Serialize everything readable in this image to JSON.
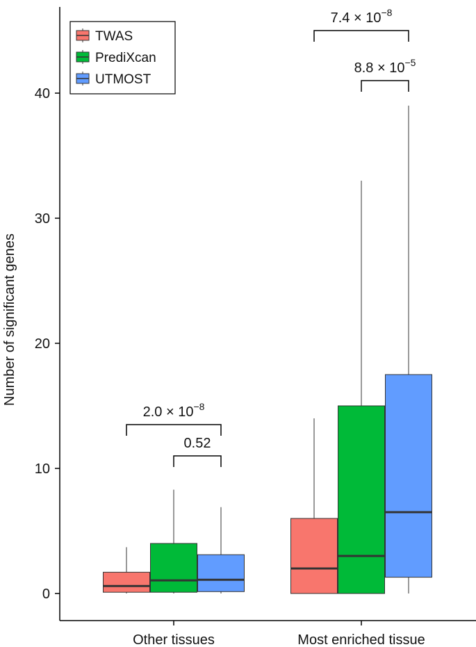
{
  "chart_data": {
    "type": "boxplot",
    "title": "",
    "xlabel": "",
    "ylabel": "Number of significant genes",
    "ylim": [
      -1.5,
      46
    ],
    "yticks": [
      0,
      10,
      20,
      30,
      40
    ],
    "grid": false,
    "legend_position": "top-left",
    "categories": [
      "Other tissues",
      "Most enriched tissue"
    ],
    "series": [
      {
        "name": "TWAS",
        "color": "#F8766D",
        "boxes": [
          {
            "whisker_low": 0,
            "q1": 0.1,
            "median": 0.6,
            "q3": 1.7,
            "whisker_high": 3.7
          },
          {
            "whisker_low": 0,
            "q1": 0,
            "median": 2,
            "q3": 6,
            "whisker_high": 14
          }
        ]
      },
      {
        "name": "PrediXcan",
        "color": "#00BA38",
        "boxes": [
          {
            "whisker_low": 0,
            "q1": 0.1,
            "median": 1.05,
            "q3": 4,
            "whisker_high": 8.3
          },
          {
            "whisker_low": 0,
            "q1": 0,
            "median": 3,
            "q3": 15,
            "whisker_high": 33
          }
        ]
      },
      {
        "name": "UTMOST",
        "color": "#619CFF",
        "boxes": [
          {
            "whisker_low": 0,
            "q1": 0.15,
            "median": 1.1,
            "q3": 3.1,
            "whisker_high": 6.9
          },
          {
            "whisker_low": 0,
            "q1": 1.3,
            "median": 6.5,
            "q3": 17.5,
            "whisker_high": 39
          }
        ]
      }
    ],
    "annotations": [
      {
        "category": 0,
        "from_series": 0,
        "to_series": 2,
        "y": 13.5,
        "mantissa": "2.0 × 10",
        "exponent": "−8"
      },
      {
        "category": 0,
        "from_series": 1,
        "to_series": 2,
        "y": 11,
        "mantissa": "0.52",
        "exponent": ""
      },
      {
        "category": 1,
        "from_series": 0,
        "to_series": 2,
        "y": 45,
        "mantissa": "7.4 × 10",
        "exponent": "−8"
      },
      {
        "category": 1,
        "from_series": 1,
        "to_series": 2,
        "y": 41,
        "mantissa": "8.8 × 10",
        "exponent": "−5"
      }
    ]
  }
}
